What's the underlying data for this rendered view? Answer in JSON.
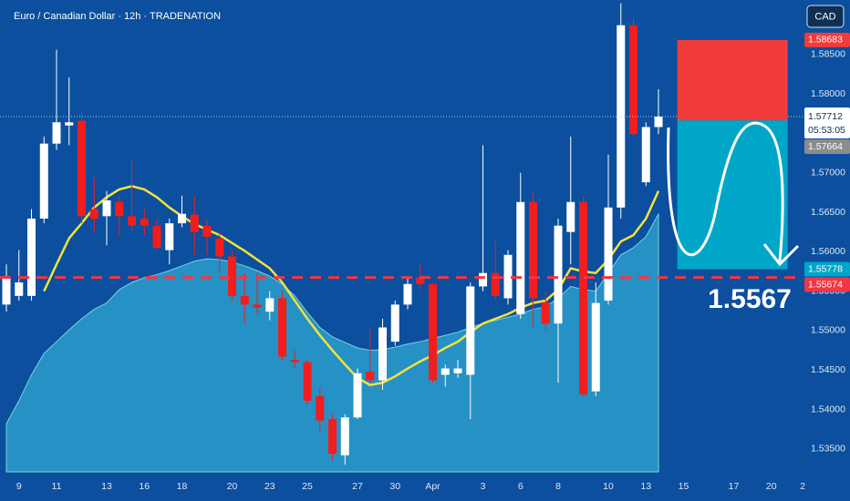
{
  "chart_data": {
    "type": "candlestick",
    "title": "Euro / Canadian Dollar · 12h · TRADENATION",
    "currency": "CAD",
    "up_color": "#ffffff",
    "down_color": "#f21d1d",
    "open": [
      1.5533,
      1.5544,
      1.5544,
      1.5642,
      1.5737,
      1.576,
      1.5766,
      1.5654,
      1.5645,
      1.5663,
      1.5645,
      1.5642,
      1.5633,
      1.5602,
      1.5636,
      1.5647,
      1.5633,
      1.5617,
      1.5594,
      1.5544,
      1.5533,
      1.5524,
      1.5541,
      1.5463,
      1.546,
      1.5417,
      1.5388,
      1.5342,
      1.539,
      1.5448,
      1.5437,
      1.5486,
      1.5533,
      1.5567,
      1.5559,
      1.5444,
      1.5446,
      1.5444,
      1.5556,
      1.5573,
      1.5541,
      1.5521,
      1.5663,
      1.5536,
      1.5509,
      1.5625,
      1.5663,
      1.5423,
      1.5538,
      1.5656,
      1.5887,
      1.5688,
      1.5758
    ],
    "high": [
      1.5584,
      1.5602,
      1.5654,
      1.5746,
      1.5856,
      1.5821,
      1.5775,
      1.5694,
      1.5677,
      1.5671,
      1.5717,
      1.5654,
      1.5642,
      1.5642,
      1.5671,
      1.5671,
      1.5642,
      1.5625,
      1.5602,
      1.5573,
      1.5573,
      1.555,
      1.555,
      1.5475,
      1.5463,
      1.5429,
      1.5394,
      1.5394,
      1.5452,
      1.5504,
      1.5515,
      1.5538,
      1.5567,
      1.5584,
      1.5561,
      1.5457,
      1.5463,
      1.5561,
      1.5735,
      1.5613,
      1.5602,
      1.57,
      1.5677,
      1.555,
      1.5642,
      1.5746,
      1.5671,
      1.5561,
      1.5723,
      1.5915,
      1.5896,
      1.5764,
      1.5806
    ],
    "low": [
      1.5524,
      1.5538,
      1.5538,
      1.5636,
      1.5729,
      1.5735,
      1.5636,
      1.5625,
      1.5608,
      1.5619,
      1.5625,
      1.5621,
      1.5602,
      1.5584,
      1.5631,
      1.5596,
      1.5596,
      1.5573,
      1.5538,
      1.5509,
      1.5521,
      1.5513,
      1.5463,
      1.5452,
      1.5405,
      1.5371,
      1.5336,
      1.533,
      1.5388,
      1.5434,
      1.5425,
      1.5481,
      1.5527,
      1.5552,
      1.5434,
      1.5429,
      1.544,
      1.5388,
      1.555,
      1.5538,
      1.5533,
      1.5515,
      1.5504,
      1.5501,
      1.5434,
      1.5584,
      1.5417,
      1.5417,
      1.5533,
      1.5642,
      1.5746,
      1.5683,
      1.5749
    ],
    "close": [
      1.5567,
      1.5561,
      1.5642,
      1.5737,
      1.5764,
      1.5764,
      1.5645,
      1.5642,
      1.5665,
      1.5645,
      1.5633,
      1.5633,
      1.5605,
      1.5636,
      1.5648,
      1.5625,
      1.5619,
      1.5594,
      1.5544,
      1.5533,
      1.5529,
      1.5541,
      1.5467,
      1.546,
      1.5411,
      1.5386,
      1.5344,
      1.539,
      1.5446,
      1.5437,
      1.5504,
      1.5533,
      1.5559,
      1.5559,
      1.5437,
      1.5452,
      1.5452,
      1.5556,
      1.5573,
      1.5544,
      1.5596,
      1.5663,
      1.5541,
      1.5509,
      1.5633,
      1.5663,
      1.5419,
      1.5535,
      1.5656,
      1.5887,
      1.5749,
      1.5758,
      1.57712
    ],
    "ma": {
      "color": "#f5e23a",
      "values": [
        null,
        null,
        null,
        1.555,
        1.5584,
        1.5617,
        1.5636,
        1.5656,
        1.5669,
        1.5679,
        1.5683,
        1.5679,
        1.5669,
        1.5656,
        1.5645,
        1.5635,
        1.5628,
        1.5621,
        1.5611,
        1.5601,
        1.559,
        1.5579,
        1.5561,
        1.5538,
        1.5515,
        1.5494,
        1.5475,
        1.5457,
        1.544,
        1.5431,
        1.5434,
        1.5442,
        1.5452,
        1.5461,
        1.5469,
        1.5478,
        1.5486,
        1.5498,
        1.5509,
        1.5515,
        1.5521,
        1.5529,
        1.5535,
        1.5538,
        1.5552,
        1.5579,
        1.5575,
        1.5573,
        1.559,
        1.5613,
        1.5621,
        1.5642,
        1.5677
      ]
    },
    "area": {
      "color": "#2a9ccb",
      "values": [
        1.5382,
        1.5411,
        1.5444,
        1.5471,
        1.5486,
        1.5501,
        1.5515,
        1.5527,
        1.5535,
        1.5552,
        1.5561,
        1.5567,
        1.5571,
        1.5576,
        1.5582,
        1.5588,
        1.5591,
        1.559,
        1.5587,
        1.5582,
        1.5576,
        1.5569,
        1.5559,
        1.5544,
        1.5523,
        1.5504,
        1.5492,
        1.5485,
        1.5478,
        1.5475,
        1.5476,
        1.5479,
        1.5483,
        1.5486,
        1.549,
        1.5494,
        1.5498,
        1.5504,
        1.5509,
        1.5513,
        1.5517,
        1.5521,
        1.5527,
        1.553,
        1.5541,
        1.5556,
        1.5552,
        1.555,
        1.5573,
        1.5596,
        1.5605,
        1.5619,
        1.5648
      ]
    },
    "last_countdown": "05:53:05",
    "position": {
      "start": 53.5,
      "end": 62.3,
      "stop": 1.58683,
      "entry": 1.57664,
      "target": 1.55778,
      "stop_color": "#f23b3b",
      "target_color": "#00a6c8",
      "entry_color": "#8c8c8c"
    },
    "level": {
      "value": 1.55674,
      "label": "1.5567",
      "color": "#f23645"
    },
    "xlim": [
      -0.51,
      63.49
    ],
    "ylim": [
      1.5321,
      1.5919
    ],
    "xticks": [
      {
        "value": 1,
        "label": "9"
      },
      {
        "value": 4,
        "label": "11"
      },
      {
        "value": 8,
        "label": "13"
      },
      {
        "value": 11,
        "label": "16"
      },
      {
        "value": 14,
        "label": "18"
      },
      {
        "value": 18,
        "label": "20"
      },
      {
        "value": 21,
        "label": "23"
      },
      {
        "value": 24,
        "label": "25"
      },
      {
        "value": 28,
        "label": "27"
      },
      {
        "value": 31,
        "label": "30"
      },
      {
        "value": 34,
        "label": "Apr"
      },
      {
        "value": 38,
        "label": "3"
      },
      {
        "value": 41,
        "label": "6"
      },
      {
        "value": 44,
        "label": "8"
      },
      {
        "value": 48,
        "label": "10"
      },
      {
        "value": 51,
        "label": "13"
      },
      {
        "value": 54,
        "label": "15"
      },
      {
        "value": 58,
        "label": "17"
      },
      {
        "value": 61,
        "label": "20"
      },
      {
        "value": 63.5,
        "label": "2"
      }
    ],
    "yticks": [
      {
        "value": 1.535,
        "label": "1.53500"
      },
      {
        "value": 1.54,
        "label": "1.54000"
      },
      {
        "value": 1.545,
        "label": "1.54500"
      },
      {
        "value": 1.55,
        "label": "1.55000"
      },
      {
        "value": 1.555,
        "label": "1.55500"
      },
      {
        "value": 1.56,
        "label": "1.56000"
      },
      {
        "value": 1.565,
        "label": "1.56500"
      },
      {
        "value": 1.57,
        "label": "1.57000"
      },
      {
        "value": 1.575,
        "label": "1.57500"
      },
      {
        "value": 1.58,
        "label": "1.58000"
      },
      {
        "value": 1.585,
        "label": "1.58500"
      }
    ]
  }
}
